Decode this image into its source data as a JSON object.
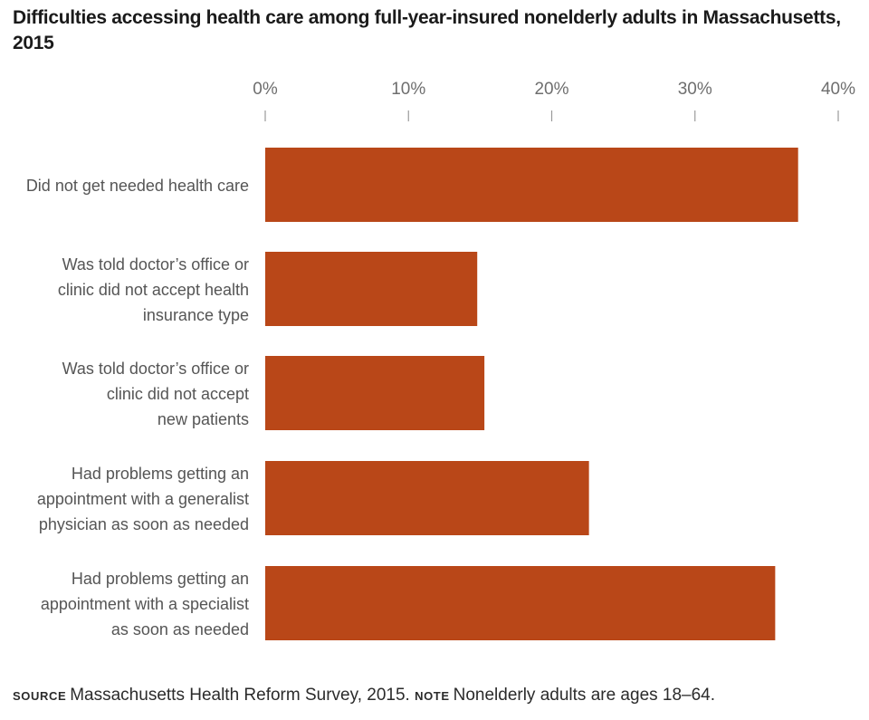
{
  "chart_data": {
    "type": "bar",
    "orientation": "horizontal",
    "title": "Difficulties accessing health care among full-year-insured nonelderly adults in Massachusetts, 2015",
    "xlabel": "",
    "ylabel": "",
    "xlim": [
      0,
      40
    ],
    "x_ticks": [
      0,
      10,
      20,
      30,
      40
    ],
    "x_tick_labels": [
      "0%",
      "10%",
      "20%",
      "30%",
      "40%"
    ],
    "x_axis_position": "top",
    "grid": false,
    "legend": null,
    "bar_color": "#B94718",
    "categories": [
      [
        "Did not get needed health care"
      ],
      [
        "Was told doctor’s office or",
        "clinic did not accept health",
        "insurance type"
      ],
      [
        "Was told doctor’s office or",
        "clinic did not accept",
        "new patients"
      ],
      [
        "Had problems getting an",
        "appointment with a generalist",
        "physician as soon as needed"
      ],
      [
        "Had problems getting an",
        "appointment with a specialist",
        "as soon as needed"
      ]
    ],
    "values": [
      37.2,
      14.8,
      15.3,
      22.6,
      35.6
    ],
    "unit": "%"
  },
  "footer": {
    "source_label": "Source",
    "source_text": "Massachusetts Health Reform Survey, 2015.",
    "note_label": "Note",
    "note_text": "Nonelderly adults are ages 18–64."
  }
}
